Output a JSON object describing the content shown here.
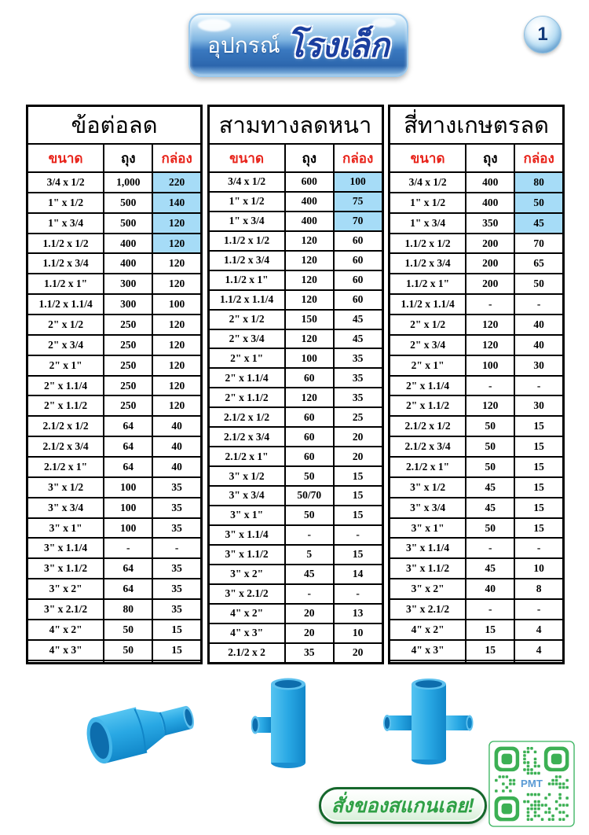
{
  "page": {
    "number": "1"
  },
  "header": {
    "badge_text_regular": "อุปกรณ์",
    "badge_text_bold": "โรงเล็ก"
  },
  "colors": {
    "highlight_cell": "#a6dcf7",
    "header_red": "#e8231a",
    "pvc_blue": "#29a8e4",
    "qr_green": "#3cb054",
    "cta_green": "#2fa045"
  },
  "tables": [
    {
      "title": "ข้อต่อลด",
      "columns": [
        "ขนาด",
        "ถุง",
        "กล่อง"
      ],
      "highlight_box_rows": 4,
      "rows": [
        [
          "3/4 x 1/2",
          "1,000",
          "220"
        ],
        [
          "1\" x 1/2",
          "500",
          "140"
        ],
        [
          "1\" x 3/4",
          "500",
          "120"
        ],
        [
          "1.1/2 x 1/2",
          "400",
          "120"
        ],
        [
          "1.1/2 x 3/4",
          "400",
          "120"
        ],
        [
          "1.1/2 x 1\"",
          "300",
          "120"
        ],
        [
          "1.1/2 x 1.1/4",
          "300",
          "100"
        ],
        [
          "2\" x 1/2",
          "250",
          "120"
        ],
        [
          "2\" x 3/4",
          "250",
          "120"
        ],
        [
          "2\" x 1\"",
          "250",
          "120"
        ],
        [
          "2\" x 1.1/4",
          "250",
          "120"
        ],
        [
          "2\" x 1.1/2",
          "250",
          "120"
        ],
        [
          "2.1/2 x 1/2",
          "64",
          "40"
        ],
        [
          "2.1/2 x 3/4",
          "64",
          "40"
        ],
        [
          "2.1/2 x 1\"",
          "64",
          "40"
        ],
        [
          "3\" x 1/2",
          "100",
          "35"
        ],
        [
          "3\" x 3/4",
          "100",
          "35"
        ],
        [
          "3\" x 1\"",
          "100",
          "35"
        ],
        [
          "3\" x 1.1/4",
          "-",
          "-"
        ],
        [
          "3\" x 1.1/2",
          "64",
          "35"
        ],
        [
          "3\" x 2\"",
          "64",
          "35"
        ],
        [
          "3\" x 2.1/2",
          "80",
          "35"
        ],
        [
          "4\" x 2\"",
          "50",
          "15"
        ],
        [
          "4\" x 3\"",
          "50",
          "15"
        ],
        [
          "",
          "",
          ""
        ]
      ]
    },
    {
      "title": "สามทางลดหนา",
      "columns": [
        "ขนาด",
        "ถุง",
        "กล่อง"
      ],
      "highlight_box_rows": 3,
      "rows": [
        [
          "3/4 x 1/2",
          "600",
          "100"
        ],
        [
          "1\" x 1/2",
          "400",
          "75"
        ],
        [
          "1\" x 3/4",
          "400",
          "70"
        ],
        [
          "1.1/2 x 1/2",
          "120",
          "60"
        ],
        [
          "1.1/2 x 3/4",
          "120",
          "60"
        ],
        [
          "1.1/2 x 1\"",
          "120",
          "60"
        ],
        [
          "1.1/2 x 1.1/4",
          "120",
          "60"
        ],
        [
          "2\" x 1/2",
          "150",
          "45"
        ],
        [
          "2\" x 3/4",
          "120",
          "45"
        ],
        [
          "2\" x 1\"",
          "100",
          "35"
        ],
        [
          "2\" x 1.1/4",
          "60",
          "35"
        ],
        [
          "2\" x 1.1/2",
          "120",
          "35"
        ],
        [
          "2.1/2 x 1/2",
          "60",
          "25"
        ],
        [
          "2.1/2 x 3/4",
          "60",
          "20"
        ],
        [
          "2.1/2 x 1\"",
          "60",
          "20"
        ],
        [
          "3\" x 1/2",
          "50",
          "15"
        ],
        [
          "3\" x 3/4",
          "50/70",
          "15"
        ],
        [
          "3\" x 1\"",
          "50",
          "15"
        ],
        [
          "3\" x 1.1/4",
          "-",
          "-"
        ],
        [
          "3\" x 1.1/2",
          "5",
          "15"
        ],
        [
          "3\" x 2\"",
          "45",
          "14"
        ],
        [
          "3\" x 2.1/2",
          "-",
          "-"
        ],
        [
          "4\" x 2\"",
          "20",
          "13"
        ],
        [
          "4\" x 3\"",
          "20",
          "10"
        ],
        [
          "2.1/2 x 2",
          "35",
          "20"
        ]
      ]
    },
    {
      "title": "สี่ทางเกษตรลด",
      "columns": [
        "ขนาด",
        "ถุง",
        "กล่อง"
      ],
      "highlight_box_rows": 3,
      "rows": [
        [
          "3/4 x 1/2",
          "400",
          "80"
        ],
        [
          "1\" x 1/2",
          "400",
          "50"
        ],
        [
          "1\" x 3/4",
          "350",
          "45"
        ],
        [
          "1.1/2 x 1/2",
          "200",
          "70"
        ],
        [
          "1.1/2 x 3/4",
          "200",
          "65"
        ],
        [
          "1.1/2 x 1\"",
          "200",
          "50"
        ],
        [
          "1.1/2 x 1.1/4",
          "-",
          "-"
        ],
        [
          "2\" x 1/2",
          "120",
          "40"
        ],
        [
          "2\" x 3/4",
          "120",
          "40"
        ],
        [
          "2\" x 1\"",
          "100",
          "30"
        ],
        [
          "2\" x 1.1/4",
          "-",
          "-"
        ],
        [
          "2\" x 1.1/2",
          "120",
          "30"
        ],
        [
          "2.1/2 x 1/2",
          "50",
          "15"
        ],
        [
          "2.1/2 x 3/4",
          "50",
          "15"
        ],
        [
          "2.1/2 x 1\"",
          "50",
          "15"
        ],
        [
          "3\" x 1/2",
          "45",
          "15"
        ],
        [
          "3\" x 3/4",
          "45",
          "15"
        ],
        [
          "3\" x 1\"",
          "50",
          "15"
        ],
        [
          "3\" x 1.1/4",
          "-",
          "-"
        ],
        [
          "3\" x 1.1/2",
          "45",
          "10"
        ],
        [
          "3\" x 2\"",
          "40",
          "8"
        ],
        [
          "3\" x 2.1/2",
          "-",
          "-"
        ],
        [
          "4\" x 2\"",
          "15",
          "4"
        ],
        [
          "4\" x 3\"",
          "15",
          "4"
        ],
        [
          "",
          "",
          ""
        ]
      ]
    }
  ],
  "products": [
    "reducing-coupling",
    "reducing-tee",
    "reducing-cross"
  ],
  "qr": {
    "label": "PMT"
  },
  "cta": {
    "label": "สั่งของสแกนเลย!"
  }
}
